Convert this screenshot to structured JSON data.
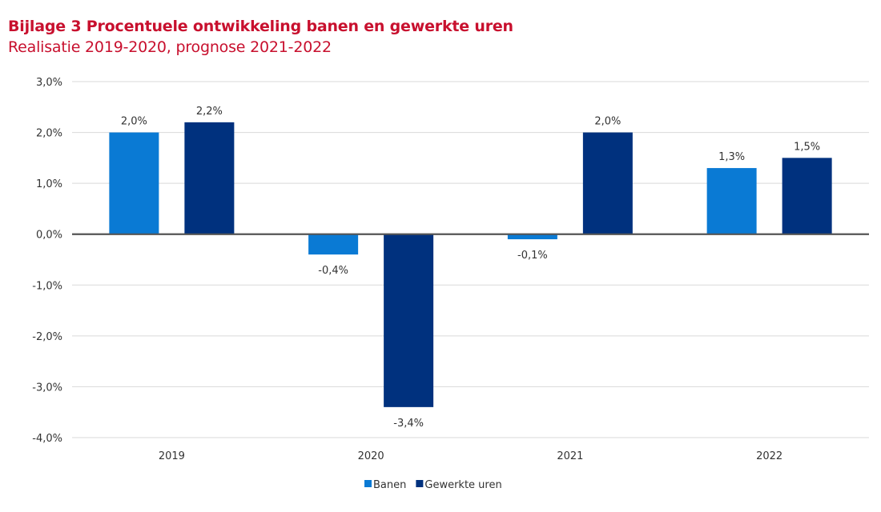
{
  "chart_data": {
    "type": "bar",
    "title": "Bijlage 3 Procentuele ontwikkeling banen en gewerkte uren",
    "subtitle": "Realisatie 2019-2020, prognose 2021-2022",
    "categories": [
      "2019",
      "2020",
      "2021",
      "2022"
    ],
    "series": [
      {
        "name": "Banen",
        "color": "#0a7ad4",
        "values": [
          2.0,
          -0.4,
          -0.1,
          1.3
        ],
        "labels": [
          "2,0%",
          "-0,4%",
          "-0,1%",
          "1,3%"
        ]
      },
      {
        "name": "Gewerkte uren",
        "color": "#00317e",
        "values": [
          2.2,
          -3.4,
          2.0,
          1.5
        ],
        "labels": [
          "2,2%",
          "-3,4%",
          "2,0%",
          "1,5%"
        ]
      }
    ],
    "ylim": [
      -4.0,
      3.0
    ],
    "yticks": [
      3.0,
      2.0,
      1.0,
      0.0,
      -1.0,
      -2.0,
      -3.0,
      -4.0
    ],
    "ytick_labels": [
      "3,0%",
      "2,0%",
      "1,0%",
      "0,0%",
      "-1,0%",
      "-2,0%",
      "-3,0%",
      "-4,0%"
    ],
    "xlabel": "",
    "ylabel": "",
    "grid": true,
    "legend_position": "bottom"
  }
}
